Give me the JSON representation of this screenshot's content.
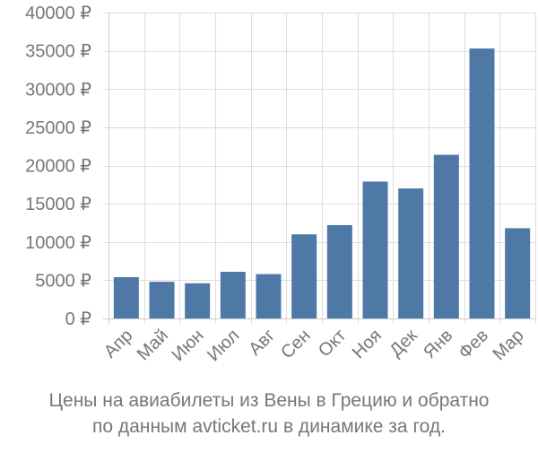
{
  "chart_data": {
    "type": "bar",
    "categories": [
      "Апр",
      "Май",
      "Июн",
      "Июл",
      "Авг",
      "Сен",
      "Окт",
      "Ноя",
      "Дек",
      "Янв",
      "Фев",
      "Мар"
    ],
    "values": [
      5400,
      4800,
      4600,
      6100,
      5800,
      11000,
      12200,
      17900,
      17000,
      21400,
      35300,
      11800
    ],
    "ylim": [
      0,
      40000
    ],
    "yticks": [
      0,
      5000,
      10000,
      15000,
      20000,
      25000,
      30000,
      35000,
      40000
    ],
    "ytick_labels": [
      "0 ₽",
      "5000 ₽",
      "10000 ₽",
      "15000 ₽",
      "20000 ₽",
      "25000 ₽",
      "30000 ₽",
      "35000 ₽",
      "40000 ₽"
    ],
    "grid": true,
    "bar_color": "#4e79a7",
    "grid_color": "#dddddd",
    "axis_text_color": "#777777"
  },
  "caption": {
    "line1": "Цены на авиабилеты из Вены в Грецию и обратно",
    "line2": "по данным avticket.ru в динамике за год."
  }
}
